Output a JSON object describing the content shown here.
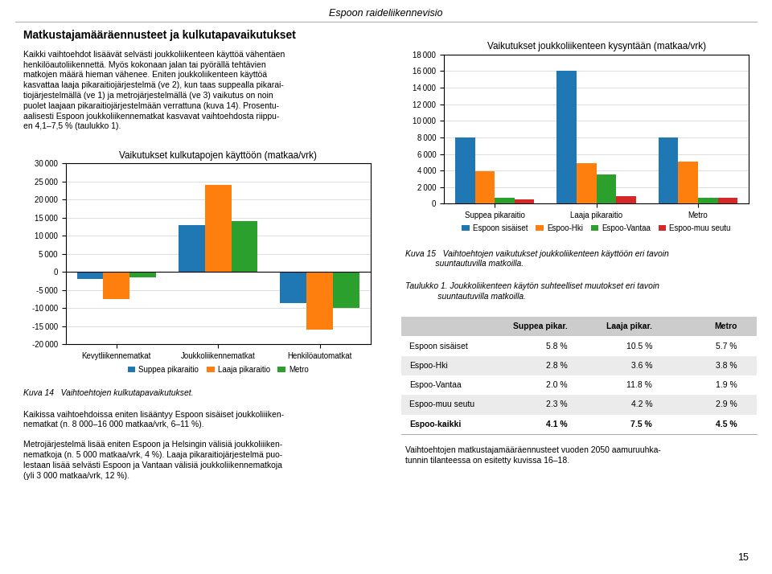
{
  "page_title": "Espoon raideliikennevisio",
  "page_number": "15",
  "left_title": "Matkustajamääräennusteet ja kulkutapavaikutukset",
  "left_para1": "Kaikki vaihtoehdot lisäävät selvästi joukkoliikenteen käyttöä vähentäen\nhenkilöautoliikennettä. Myös kokonaan jalan tai pyörällä tehtävien\nmatkojen määrä hieman vähenee. Eniten joukkoliikenteen käyttöä\nkasvattaa laaja pikaraitiojärjestelmä (ve 2), kun taas suppealla pikarai-\ntiojärjestelmällä (ve 1) ja metrojärjestelmällä (ve 3) vaikutus on noin\npuolet laajaan pikaraitiojärjestelmään verrattuna (kuva 14). Prosentu-\naalisesti Espoon joukkoliikennematkat kasvavat vaihtoehdosta riippu-\nen 4,1–7,5 % (taulukko 1).",
  "left_para2": "Kaikissa vaihtoehdoissa eniten lisääntyy Espoon sisäiset joukkoliiiken-\nnematkat (n. 8 000–16 000 matkaa/vrk, 6–11 %).",
  "left_para3": "Metrojärjestelmä lisää eniten Espoon ja Helsingin välisiä joukkoliiiken-\nnematkoja (n. 5 000 matkaa/vrk, 4 %). Laaja pikaraitiojärjestelmä puo-\nlestaan lisää selvästi Espoon ja Vantaan välisiä joukkoliikennematkoja\n(yli 3 000 matkaa/vrk, 12 %).",
  "right_para": "Vaihtoehtojen matkustajamääräennusteet vuoden 2050 aamuruuhka-\ntunnin tilanteessa on esitetty kuvissa 16–18.",
  "chart_data": [
    {
      "type": "bar",
      "title": "Vaikutukset kulkutapojen käyttöön (matkaa/vrk)",
      "caption": "Kuva 14   Vaihtoehtojen kulkutapavaikutukset.",
      "categories": [
        "Kevytliikennematkat",
        "Joukkoliikennematkat",
        "Henkilöautomatkat"
      ],
      "series": [
        {
          "name": "Suppea pikaraitio",
          "values": [
            -2000,
            13000,
            -8500
          ]
        },
        {
          "name": "Laaja pikaraitio",
          "values": [
            -7500,
            24000,
            -16000
          ]
        },
        {
          "name": "Metro",
          "values": [
            -1500,
            14000,
            -10000
          ]
        }
      ],
      "ylim": [
        -20000,
        30000
      ],
      "yticks": [
        {
          "value": -20000,
          "label": "-20 000"
        },
        {
          "value": -15000,
          "label": "-15 000"
        },
        {
          "value": -10000,
          "label": "-10 000"
        },
        {
          "value": -5000,
          "label": "-5 000"
        },
        0,
        {
          "value": 5000,
          "label": "5 000"
        },
        {
          "value": 10000,
          "label": "10 000"
        },
        {
          "value": 15000,
          "label": "15 000"
        },
        {
          "value": 20000,
          "label": "20 000"
        },
        {
          "value": 25000,
          "label": "25 000"
        },
        {
          "value": 30000,
          "label": "30 000"
        }
      ],
      "grid": true,
      "legend": "lower center"
    },
    {
      "type": "bar",
      "title": "Vaikutukset joukkoliikenteen kysyntään (matkaa/vrk)",
      "caption": "Kuva 15   Vaihtoehtojen vaikutukset joukkoliikenteen käyttöön eri tavoin\n             suuntautuvilla matkoilla.",
      "categories": [
        "Suppea pikaraitio",
        "Laaja pikaraitio",
        "Metro"
      ],
      "series": [
        {
          "name": "Espoon sisäiset",
          "values": [
            8000,
            16000,
            8000
          ]
        },
        {
          "name": "Espoo-Hki",
          "values": [
            3900,
            4900,
            5100
          ]
        },
        {
          "name": "Espoo-Vantaa",
          "values": [
            700,
            3500,
            700
          ]
        },
        {
          "name": "Espoo-muu seutu",
          "values": [
            500,
            900,
            700
          ]
        }
      ],
      "ylim": [
        0,
        18000
      ],
      "yticks": [
        0,
        {
          "value": 2000,
          "label": "2 000"
        },
        {
          "value": 4000,
          "label": "4 000"
        },
        {
          "value": 6000,
          "label": "6 000"
        },
        {
          "value": 8000,
          "label": "8 000"
        },
        {
          "value": 10000,
          "label": "10 000"
        },
        {
          "value": 12000,
          "label": "12 000"
        },
        {
          "value": 14000,
          "label": "14 000"
        },
        {
          "value": 16000,
          "label": "16 000"
        },
        {
          "value": 18000,
          "label": "18 000"
        }
      ],
      "grid": true,
      "legend": "lower center"
    }
  ],
  "table": {
    "title": "Taulukko 1. Joukkoliikenteen käytön suhteelliset muutokset eri tavoin\n              suuntautuvilla matkoilla.",
    "headers": [
      "Suppea pikar.",
      "Laaja pikar.",
      "Metro"
    ],
    "rows": [
      [
        "Espoon sisäiset",
        "5.8 %",
        "10.5 %",
        "5.7 %"
      ],
      [
        "Espoo-Hki",
        "2.8 %",
        "3.6 %",
        "3.8 %"
      ],
      [
        "Espoo-Vantaa",
        "2.0 %",
        "11.8 %",
        "1.9 %"
      ],
      [
        "Espoo-muu seutu",
        "2.3 %",
        "4.2 %",
        "2.9 %"
      ],
      [
        "Espoo-kaikki",
        "4.1 %",
        "7.5 %",
        "4.5 %"
      ]
    ]
  }
}
